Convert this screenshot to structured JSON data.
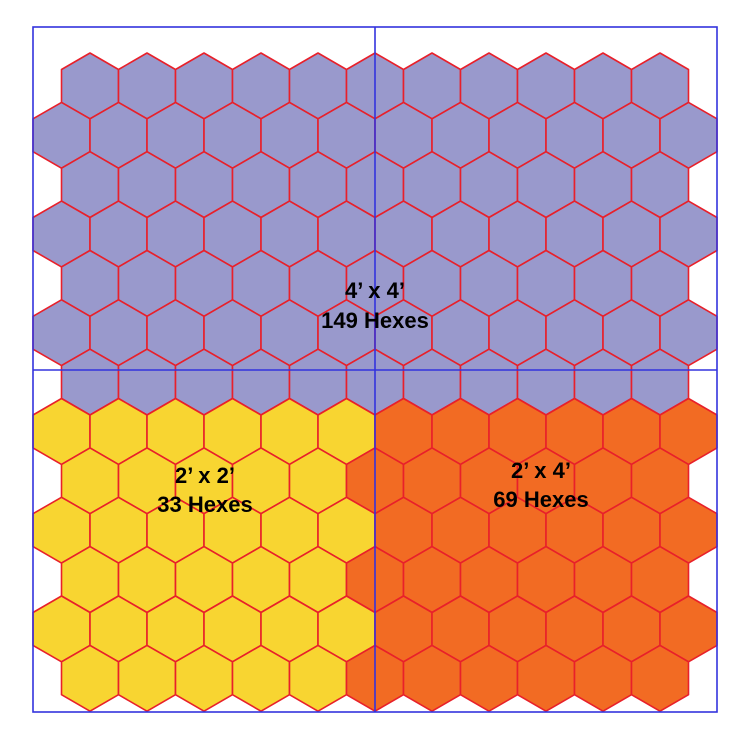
{
  "regions": [
    {
      "id": "4x4",
      "size_label": "4’ x 4’",
      "count_label": "149 Hexes",
      "color": "#9999cc"
    },
    {
      "id": "2x2",
      "size_label": "2’ x 2’",
      "count_label": "33 Hexes",
      "color": "#f8d531"
    },
    {
      "id": "2x4",
      "size_label": "2’ x 4’",
      "count_label": "69 Hexes",
      "color": "#f26b23"
    }
  ],
  "colors": {
    "hex_outline": "#e8202a",
    "grid_lines": "#3333dd"
  }
}
